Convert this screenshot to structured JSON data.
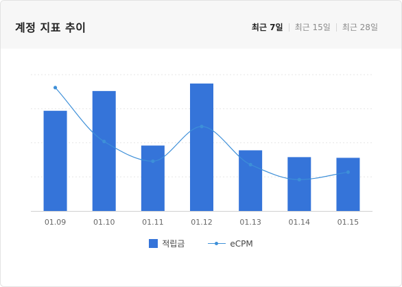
{
  "header": {
    "title": "계정 지표 추이",
    "tabs": [
      {
        "label": "최근 7일",
        "active": true
      },
      {
        "label": "최근 15일",
        "active": false
      },
      {
        "label": "최근 28일",
        "active": false
      }
    ]
  },
  "legend": {
    "bar_label": "적립금",
    "line_label": "eCPM"
  },
  "colors": {
    "bar": "#3574d9",
    "line": "#3d8fd8",
    "grid": "#e6e6e6",
    "axis": "#cfcfcf",
    "tick": "#666666"
  },
  "chart_data": {
    "type": "bar",
    "categories": [
      "01.09",
      "01.10",
      "01.11",
      "01.12",
      "01.13",
      "01.14",
      "01.15"
    ],
    "series": [
      {
        "name": "적립금",
        "type": "bar",
        "values": [
          147,
          176,
          96,
          187,
          89,
          79,
          78
        ]
      },
      {
        "name": "eCPM",
        "type": "line",
        "values": [
          181,
          102,
          73,
          124,
          68,
          46,
          57
        ]
      }
    ],
    "ylim": [
      0,
      200
    ],
    "grid": true,
    "legend_position": "bottom",
    "xlabel": "",
    "ylabel": ""
  }
}
